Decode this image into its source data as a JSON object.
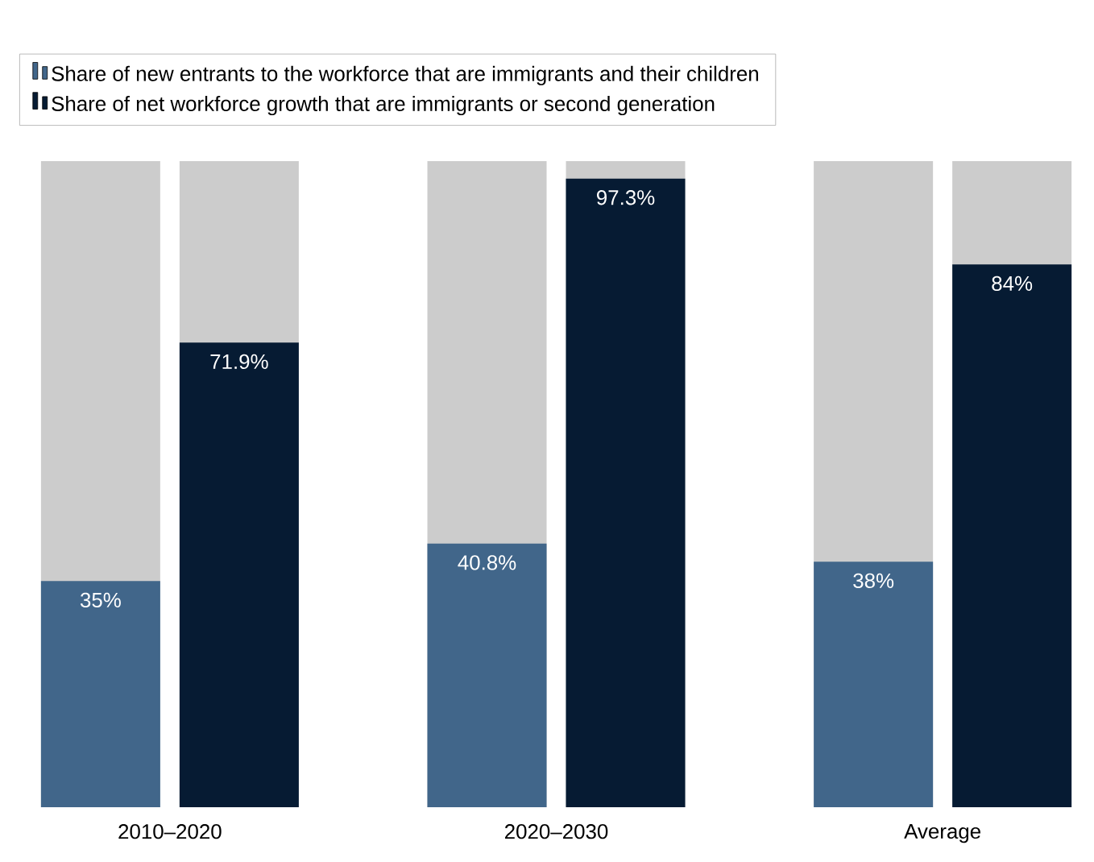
{
  "chart_data": {
    "type": "bar",
    "categories": [
      "2010–2020",
      "2020–2030",
      "Average"
    ],
    "ylim": [
      0,
      100
    ],
    "tick_labels": "x",
    "legend": "top",
    "grid": false,
    "series": [
      {
        "name": "Share of new entrants to the workforce that are immigrants and their children",
        "color": "#41668a",
        "values": [
          35,
          40.8,
          38
        ],
        "value_labels": [
          "35%",
          "40.8%",
          "38%"
        ]
      },
      {
        "name": "Share of net workforce growth that are immigrants or second generation",
        "color": "#061b33",
        "values": [
          71.9,
          97.3,
          84
        ],
        "value_labels": [
          "71.9%",
          "97.3%",
          "84%"
        ]
      }
    ]
  }
}
